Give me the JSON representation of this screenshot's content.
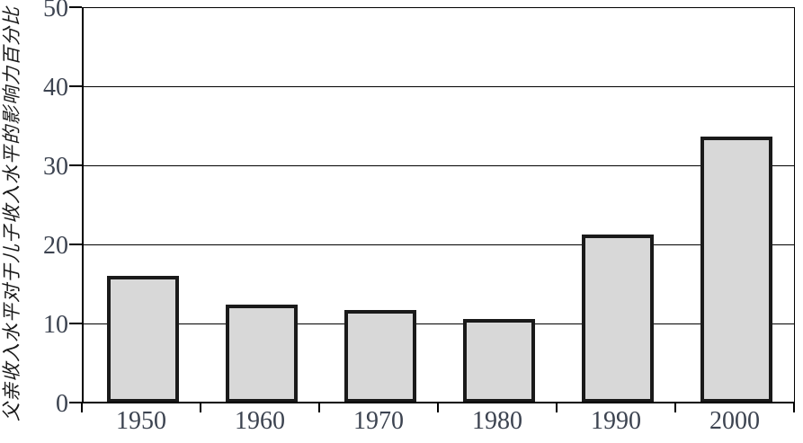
{
  "chart_data": {
    "type": "bar",
    "title": "",
    "categories": [
      "1950",
      "1960",
      "1970",
      "1980",
      "1990",
      "2000"
    ],
    "values": [
      16,
      12.4,
      11.7,
      10.6,
      21.2,
      33.6
    ],
    "xlabel": "",
    "ylabel": "父亲收入水平对于儿子收入水平的影响力百分比",
    "ylim": [
      0,
      50
    ],
    "yticks": [
      0,
      10,
      20,
      30,
      40,
      50
    ],
    "grid": "horizontal-on",
    "legend": "none",
    "colors": {
      "bar_fill": "#d8d8d8",
      "bar_border": "#1a1a1a",
      "axis": "#000000",
      "tick_label": "#3c4350"
    }
  }
}
